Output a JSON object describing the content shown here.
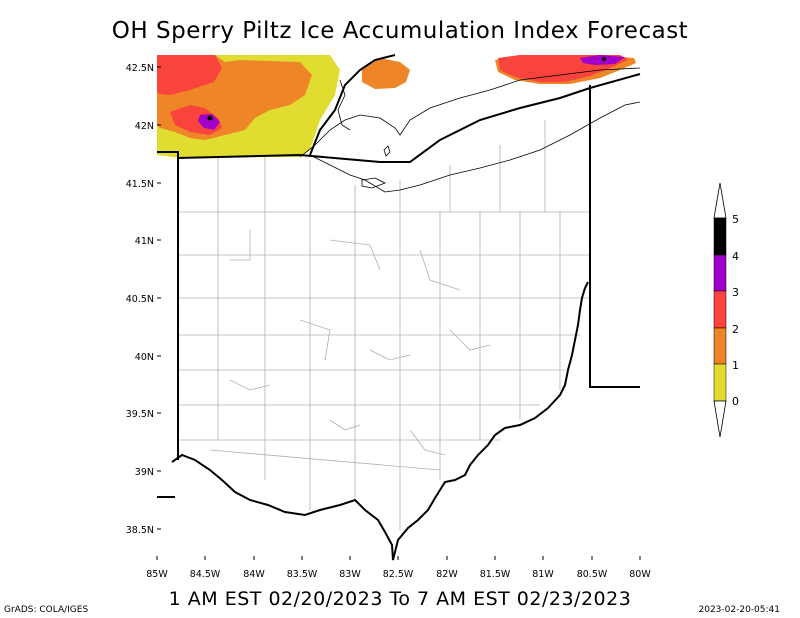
{
  "title": "OH Sperry Piltz Ice Accumulation Index Forecast",
  "subtitle": "1 AM EST 02/20/2023 To 7 AM EST 02/23/2023",
  "footer_left": "GrADS: COLA/IGES",
  "footer_right": "2023-02-20-05:41",
  "lat_labels": [
    "42.5N",
    "42N",
    "41.5N",
    "41N",
    "40.5N",
    "40N",
    "39.5N",
    "39N",
    "38.5N"
  ],
  "lon_labels": [
    "85W",
    "84.5W",
    "84W",
    "83.5W",
    "83W",
    "82.5W",
    "82W",
    "81.5W",
    "81W",
    "80.5W",
    "80W"
  ],
  "colorbar": {
    "labels": [
      "0",
      "1",
      "2",
      "3",
      "4",
      "5"
    ],
    "colors": [
      "#e0dc30",
      "#ee8628",
      "#f8443c",
      "#a000c8",
      "#000000"
    ]
  },
  "colors": {
    "level1": "#e0dc30",
    "level2": "#ee8628",
    "level3": "#f8443c",
    "level4": "#a000c8",
    "level5": "#000000"
  }
}
